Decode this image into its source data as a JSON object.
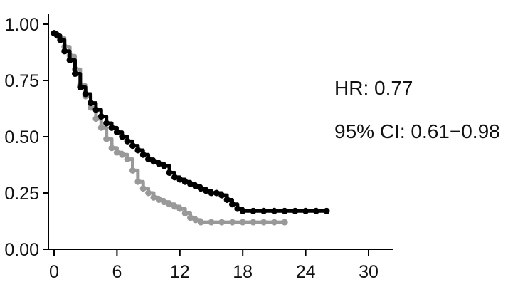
{
  "chart_data": {
    "type": "line",
    "title": "",
    "xlabel": "",
    "ylabel": "",
    "xlim": [
      0,
      30
    ],
    "ylim": [
      0,
      1
    ],
    "x_ticks": [
      0,
      6,
      12,
      18,
      24,
      30
    ],
    "x_tick_labels": [
      "0",
      "6",
      "12",
      "18",
      "24",
      "30"
    ],
    "y_ticks": [
      0,
      0.25,
      0.5,
      0.75,
      1
    ],
    "y_tick_labels": [
      "0.00",
      "0.25",
      "0.50",
      "0.75",
      "1.00"
    ],
    "grid": false,
    "annotations": [
      "HR: 0.77",
      "95% CI: 0.61−0.98"
    ],
    "series": [
      {
        "color": "#000000",
        "points": [
          [
            0,
            0.96
          ],
          [
            0.3,
            0.95
          ],
          [
            0.6,
            0.93
          ],
          [
            1,
            0.88
          ],
          [
            1.5,
            0.84
          ],
          [
            2,
            0.78
          ],
          [
            2.5,
            0.72
          ],
          [
            3,
            0.69
          ],
          [
            3.5,
            0.65
          ],
          [
            4,
            0.62
          ],
          [
            4.5,
            0.59
          ],
          [
            5,
            0.56
          ],
          [
            5.5,
            0.54
          ],
          [
            6,
            0.52
          ],
          [
            6.5,
            0.5
          ],
          [
            7,
            0.48
          ],
          [
            7.5,
            0.46
          ],
          [
            8,
            0.44
          ],
          [
            8.5,
            0.42
          ],
          [
            9,
            0.4
          ],
          [
            9.5,
            0.39
          ],
          [
            10,
            0.38
          ],
          [
            10.5,
            0.37
          ],
          [
            11,
            0.34
          ],
          [
            11.5,
            0.32
          ],
          [
            12,
            0.31
          ],
          [
            12.5,
            0.3
          ],
          [
            13,
            0.29
          ],
          [
            13.5,
            0.28
          ],
          [
            14,
            0.27
          ],
          [
            14.5,
            0.26
          ],
          [
            15,
            0.25
          ],
          [
            15.5,
            0.25
          ],
          [
            16,
            0.24
          ],
          [
            16.5,
            0.22
          ],
          [
            17,
            0.2
          ],
          [
            17.5,
            0.18
          ],
          [
            18,
            0.17
          ],
          [
            19,
            0.17
          ],
          [
            20,
            0.17
          ],
          [
            21,
            0.17
          ],
          [
            22,
            0.17
          ],
          [
            23,
            0.17
          ],
          [
            24,
            0.17
          ],
          [
            25,
            0.17
          ],
          [
            26,
            0.17
          ]
        ]
      },
      {
        "color": "#999999",
        "points": [
          [
            0,
            0.96
          ],
          [
            0.3,
            0.95
          ],
          [
            0.6,
            0.94
          ],
          [
            1,
            0.9
          ],
          [
            1.5,
            0.86
          ],
          [
            2,
            0.8
          ],
          [
            2.5,
            0.73
          ],
          [
            3,
            0.68
          ],
          [
            3.5,
            0.63
          ],
          [
            4,
            0.58
          ],
          [
            4.5,
            0.54
          ],
          [
            5,
            0.49
          ],
          [
            5.5,
            0.45
          ],
          [
            6,
            0.43
          ],
          [
            6.5,
            0.42
          ],
          [
            7,
            0.4
          ],
          [
            7.5,
            0.35
          ],
          [
            8,
            0.3
          ],
          [
            8.5,
            0.27
          ],
          [
            9,
            0.25
          ],
          [
            9.5,
            0.23
          ],
          [
            10,
            0.22
          ],
          [
            10.5,
            0.21
          ],
          [
            11,
            0.2
          ],
          [
            11.5,
            0.19
          ],
          [
            12,
            0.18
          ],
          [
            12.5,
            0.16
          ],
          [
            13,
            0.14
          ],
          [
            13.5,
            0.13
          ],
          [
            14,
            0.12
          ],
          [
            15,
            0.12
          ],
          [
            16,
            0.12
          ],
          [
            17,
            0.12
          ],
          [
            18,
            0.12
          ],
          [
            19,
            0.12
          ],
          [
            20,
            0.12
          ],
          [
            21,
            0.12
          ],
          [
            22,
            0.12
          ]
        ]
      }
    ]
  }
}
